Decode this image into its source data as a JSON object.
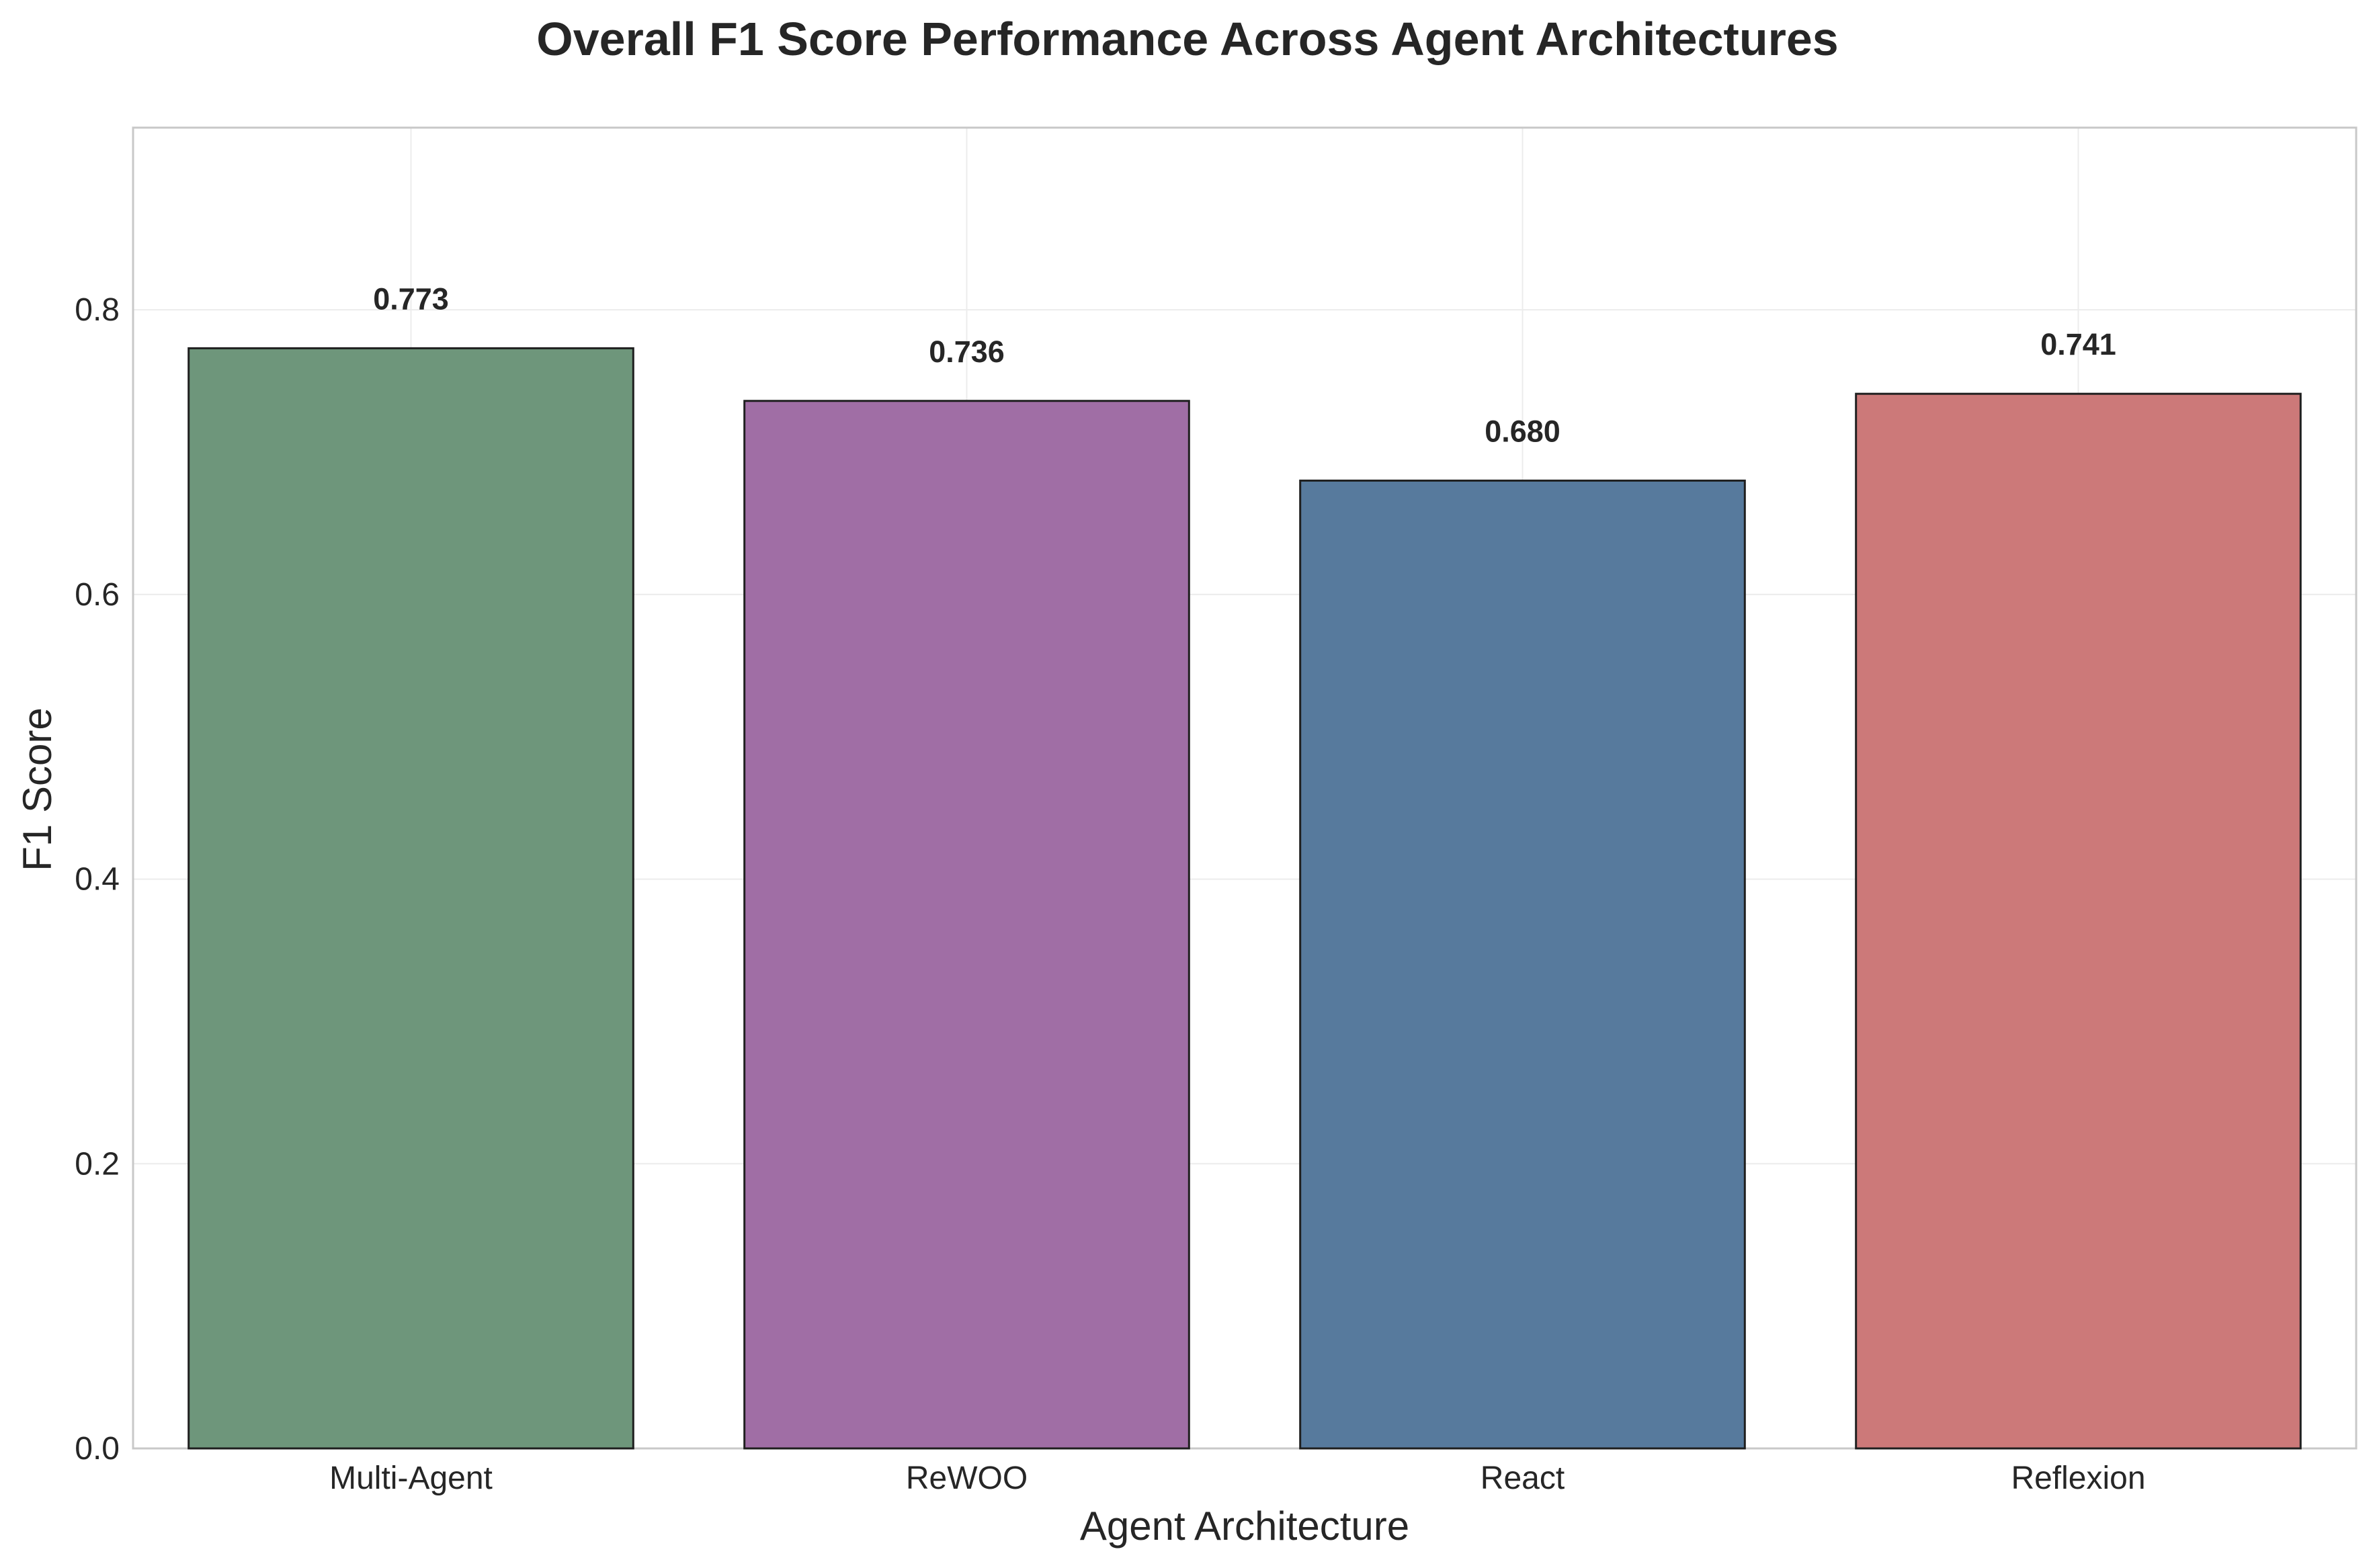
{
  "chart_data": {
    "type": "bar",
    "title": "Overall F1 Score Performance Across Agent Architectures",
    "xlabel": "Agent Architecture",
    "ylabel": "F1 Score",
    "categories": [
      "Multi-Agent",
      "ReWOO",
      "React",
      "Reflexion"
    ],
    "values": [
      0.773,
      0.736,
      0.68,
      0.741
    ],
    "value_labels": [
      "0.773",
      "0.736",
      "0.680",
      "0.741"
    ],
    "colors": [
      "#6e967b",
      "#a06ea5",
      "#577a9d",
      "#cc7979"
    ],
    "ylim": [
      0,
      0.928
    ],
    "yticks": [
      0.0,
      0.2,
      0.4,
      0.6,
      0.8
    ],
    "ytick_labels": [
      "0.0",
      "0.2",
      "0.4",
      "0.6",
      "0.8"
    ],
    "grid": true,
    "legend": "none"
  }
}
